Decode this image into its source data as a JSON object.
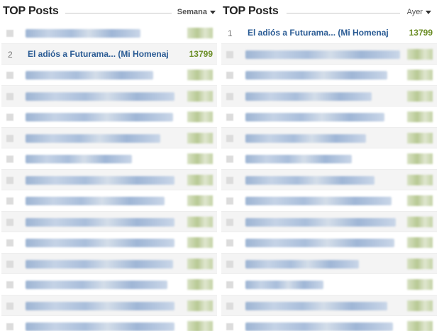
{
  "left_panel": {
    "title": "TOP Posts",
    "period_label": "Semana",
    "featured": {
      "rank": "2",
      "title": "El adiós a Futurama... (Mi Homenaj",
      "score": "13799"
    }
  },
  "right_panel": {
    "title": "TOP Posts",
    "period_label": "Ayer",
    "featured": {
      "rank": "1",
      "title": "El adiós a Futurama... (Mi Homenaj",
      "score": "13799"
    }
  },
  "colors": {
    "link": "#2a5b94",
    "score": "#6c8e27",
    "alt_row": "#f4f4f4"
  },
  "icons": {
    "dropdown": "caret-down-icon"
  }
}
